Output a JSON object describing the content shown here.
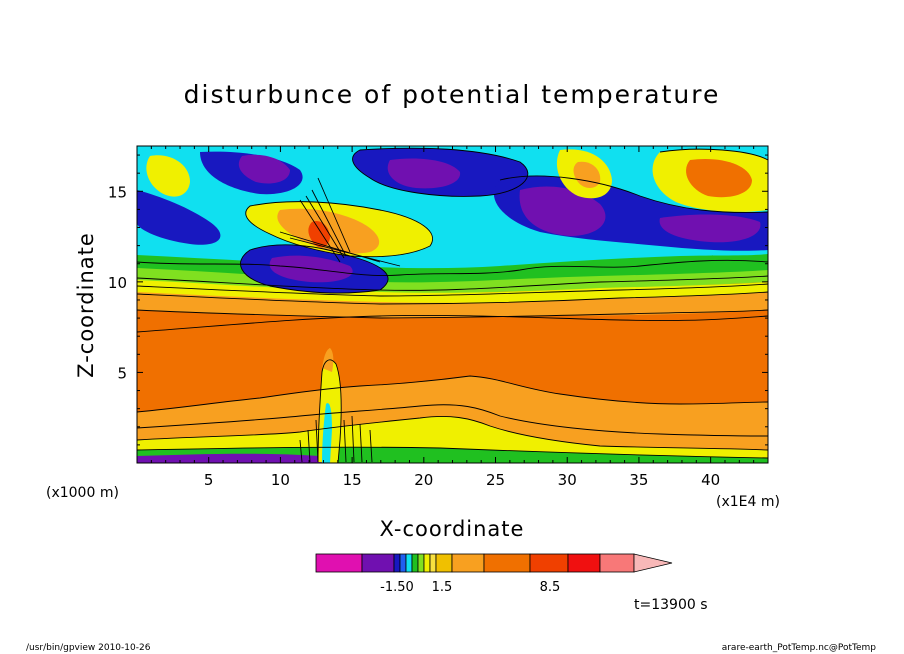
{
  "chart_data": {
    "type": "heatmap",
    "title": "disturbunce of potential temperature",
    "xlabel": "X-coordinate",
    "ylabel": "Z-coordinate",
    "x_unit_label": "(x1000 m)",
    "x_scale_label": "(x1E4 m)",
    "xlim": [
      0,
      44
    ],
    "ylim": [
      0,
      17.5
    ],
    "x_ticks": [
      "5",
      "10",
      "15",
      "20",
      "25",
      "30",
      "35",
      "40"
    ],
    "x_tick_values": [
      5,
      10,
      15,
      20,
      25,
      30,
      35,
      40
    ],
    "y_ticks": [
      "5",
      "10",
      "15"
    ],
    "y_tick_values": [
      5,
      10,
      15
    ],
    "colorbar": {
      "colors": [
        "#e010b0",
        "#7010b0",
        "#1818c0",
        "#2060f0",
        "#10e0f0",
        "#20c020",
        "#80e020",
        "#f0f000",
        "#f8e040",
        "#f0c000",
        "#f8a020",
        "#f07000",
        "#f04000",
        "#f01010",
        "#f87878",
        "#f8b8b8"
      ],
      "tick_labels": [
        "-1.50",
        "1.5",
        "8.5"
      ]
    },
    "time_label": "t=13900 s",
    "footer_left": "/usr/bin/gpview   2010-10-26",
    "footer_right": "arare-earth_PotTemp.nc@PotTemp"
  }
}
